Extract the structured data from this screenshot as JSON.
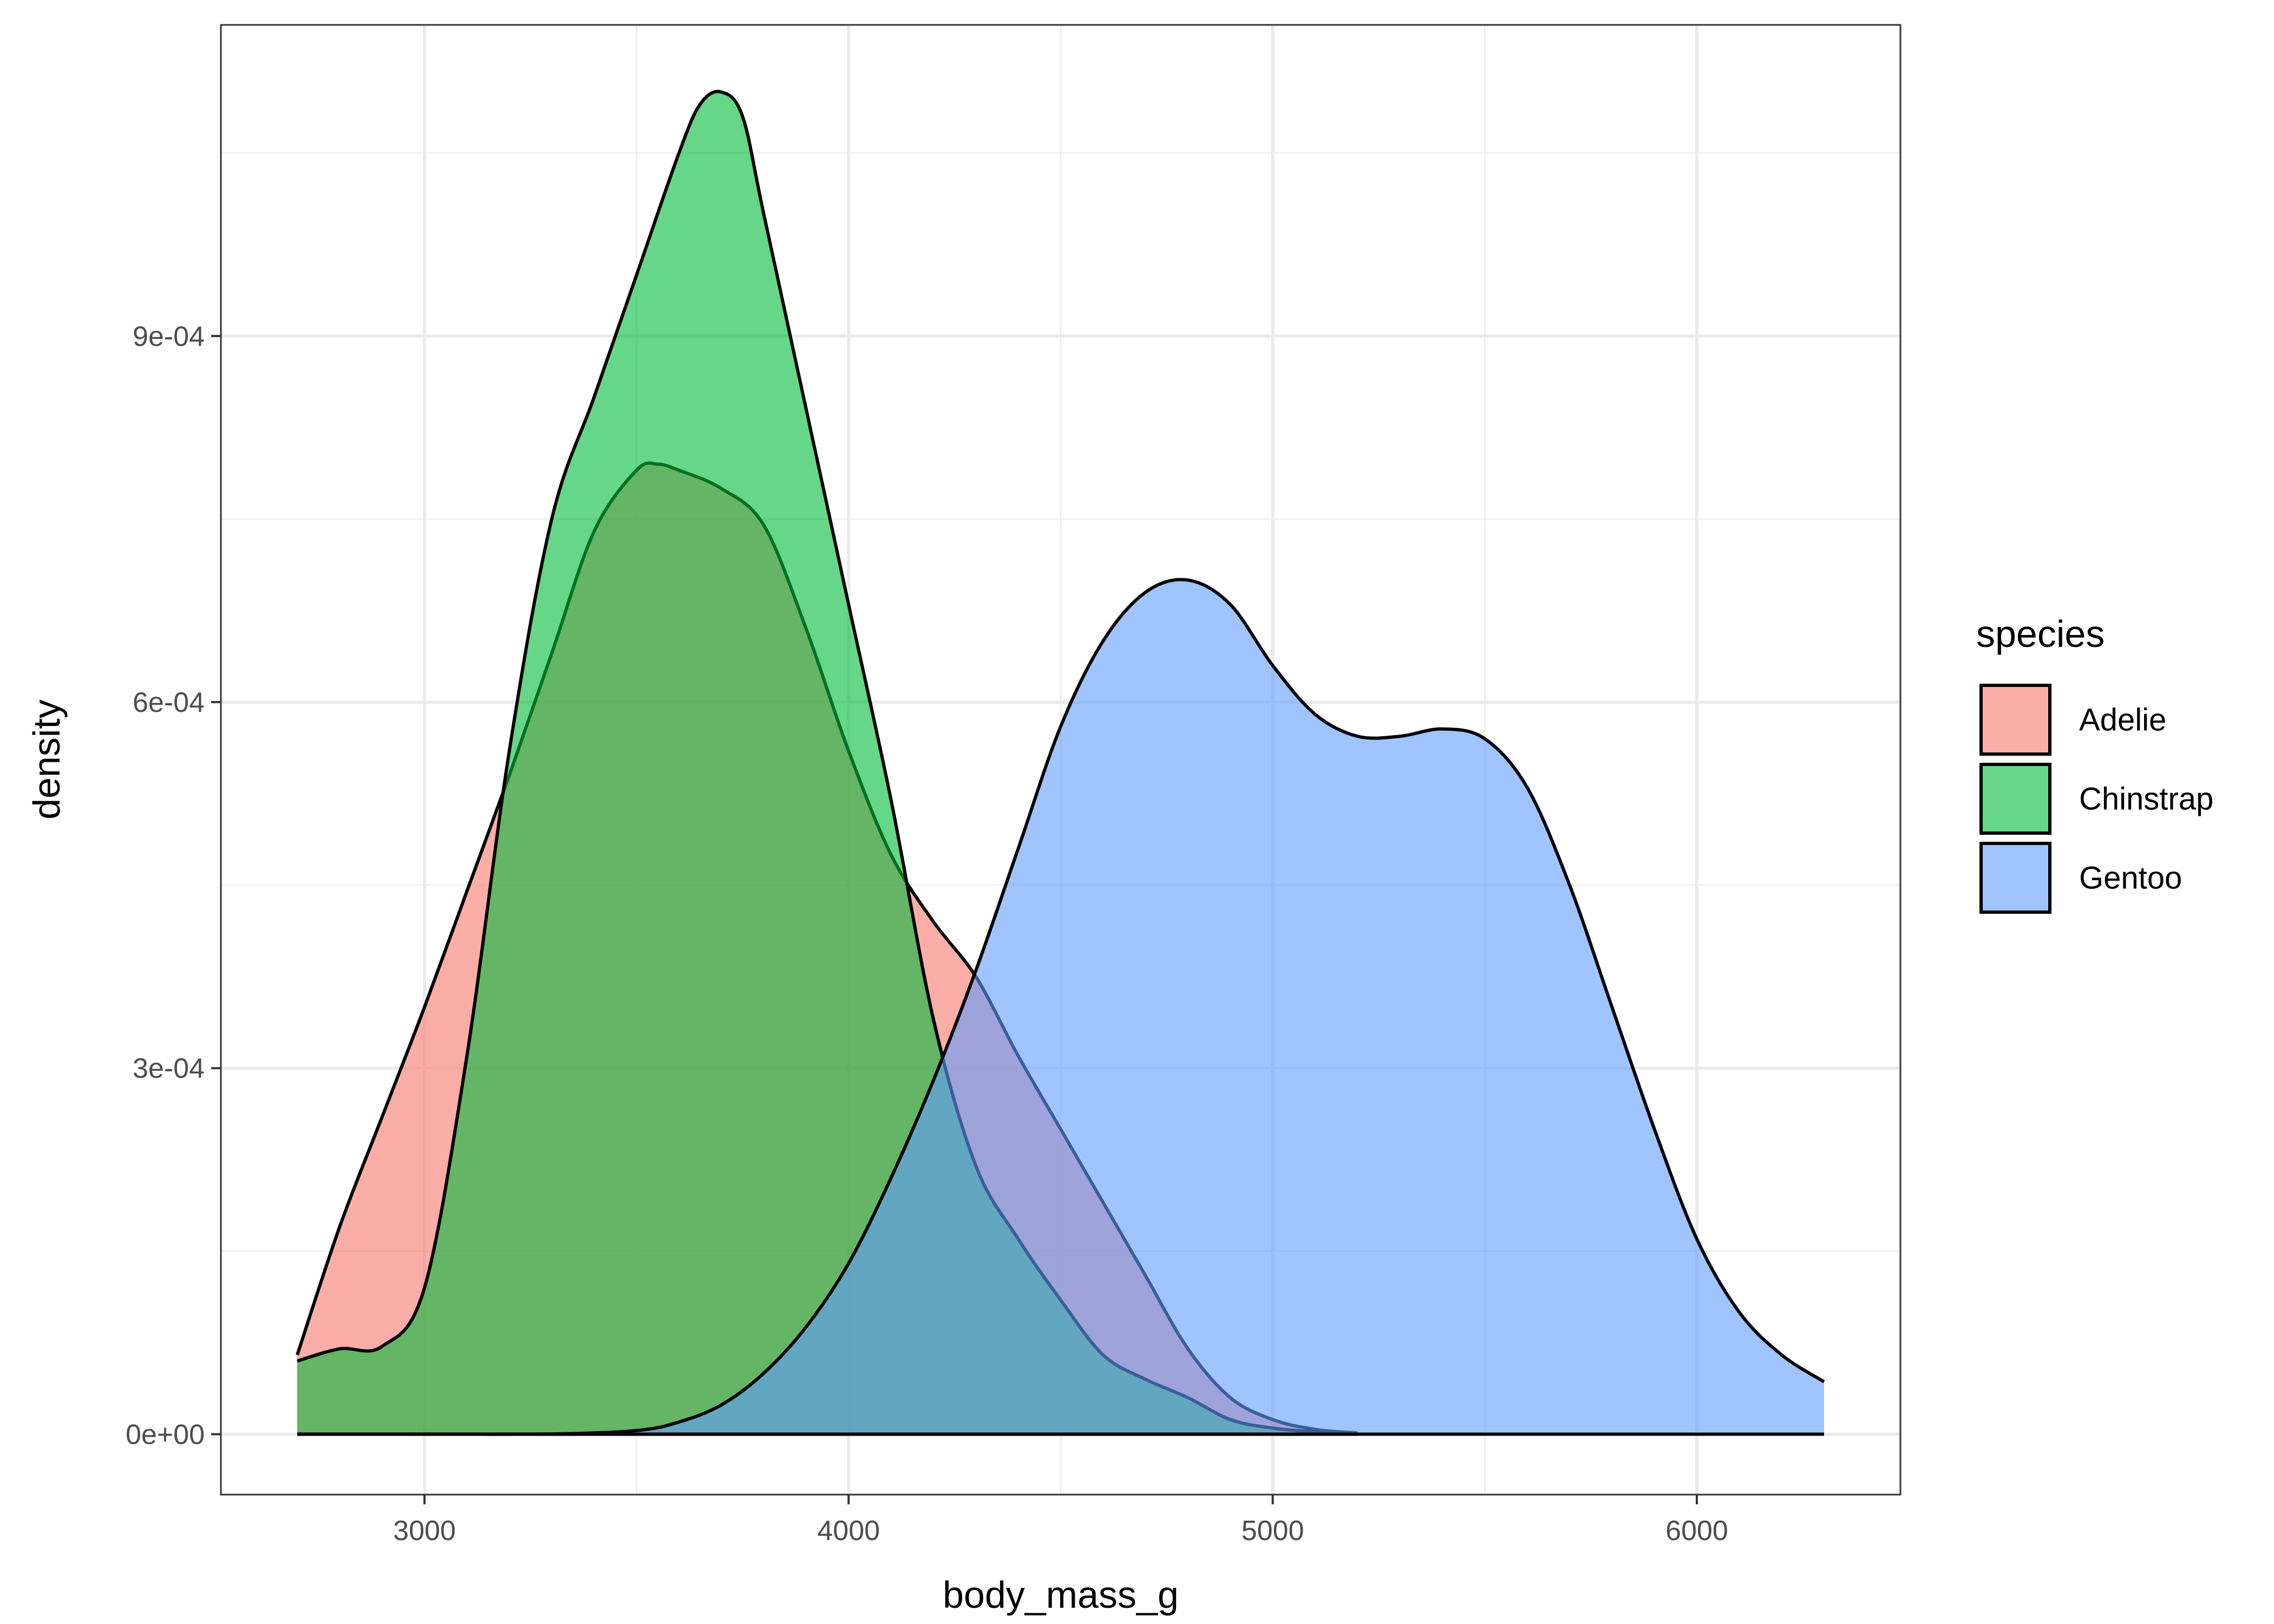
{
  "chart_data": {
    "type": "area",
    "subtype": "density",
    "xlabel": "body_mass_g",
    "ylabel": "density",
    "xlim": [
      2520,
      6480
    ],
    "ylim": [
      -4.95e-05,
      0.001155
    ],
    "x_ticks": [
      {
        "value": 3000,
        "label": "3000"
      },
      {
        "value": 4000,
        "label": "4000"
      },
      {
        "value": 5000,
        "label": "5000"
      },
      {
        "value": 6000,
        "label": "6000"
      }
    ],
    "y_ticks": [
      {
        "value": 0,
        "label": "0e+00"
      },
      {
        "value": 0.0003,
        "label": "3e-04"
      },
      {
        "value": 0.0006,
        "label": "6e-04"
      },
      {
        "value": 0.0009,
        "label": "9e-04"
      }
    ],
    "grid": true,
    "legend": {
      "title": "species",
      "position": "right"
    },
    "series": [
      {
        "name": "Adelie",
        "color": "#F8766D",
        "x": [
          2700,
          2800,
          2900,
          3000,
          3100,
          3200,
          3300,
          3400,
          3500,
          3550,
          3600,
          3700,
          3800,
          3900,
          4000,
          4100,
          4200,
          4300,
          4400,
          4500,
          4600,
          4700,
          4800,
          4900,
          5000,
          5100,
          5200
        ],
        "y": [
          6.5e-05,
          0.00017,
          0.00026,
          0.00035,
          0.000445,
          0.00054,
          0.00064,
          0.00074,
          0.00079,
          0.000795,
          0.00079,
          0.000775,
          0.000745,
          0.00066,
          0.00056,
          0.000475,
          0.00042,
          0.000375,
          0.00031,
          0.00025,
          0.00019,
          0.00013,
          7e-05,
          3e-05,
          1.2e-05,
          4e-06,
          1e-06
        ]
      },
      {
        "name": "Chinstrap",
        "color": "#00BA38",
        "x": [
          2700,
          2800,
          2900,
          3000,
          3100,
          3200,
          3300,
          3400,
          3500,
          3600,
          3650,
          3700,
          3750,
          3800,
          3900,
          4000,
          4100,
          4200,
          4300,
          4400,
          4500,
          4600,
          4700,
          4800,
          4900,
          5000,
          5100,
          5200
        ],
        "y": [
          6e-05,
          7e-05,
          7.2e-05,
          0.00012,
          0.00031,
          0.00056,
          0.00075,
          0.00085,
          0.00095,
          0.00105,
          0.00109,
          0.0011,
          0.00108,
          0.001,
          0.00084,
          0.00068,
          0.00052,
          0.00034,
          0.00022,
          0.00016,
          0.00011,
          6.5e-05,
          4.5e-05,
          3e-05,
          1.2e-05,
          5e-06,
          2e-06,
          5e-07
        ]
      },
      {
        "name": "Gentoo",
        "color": "#619CFF",
        "x": [
          2700,
          3000,
          3300,
          3500,
          3600,
          3700,
          3800,
          3900,
          4000,
          4100,
          4200,
          4300,
          4400,
          4500,
          4600,
          4700,
          4800,
          4900,
          5000,
          5100,
          5200,
          5300,
          5400,
          5500,
          5600,
          5700,
          5800,
          5900,
          6000,
          6100,
          6200,
          6300
        ],
        "y": [
          0,
          0,
          2e-07,
          3e-06,
          1e-05,
          2.4e-05,
          5e-05,
          8.8e-05,
          0.00014,
          0.00021,
          0.00029,
          0.00038,
          0.00048,
          0.00058,
          0.00065,
          0.00069,
          0.0007,
          0.00068,
          0.00063,
          0.00059,
          0.000572,
          0.000572,
          0.000578,
          0.00057,
          0.00053,
          0.00045,
          0.00035,
          0.00025,
          0.00016,
          0.0001,
          6.5e-05,
          4.3e-05
        ]
      }
    ]
  }
}
